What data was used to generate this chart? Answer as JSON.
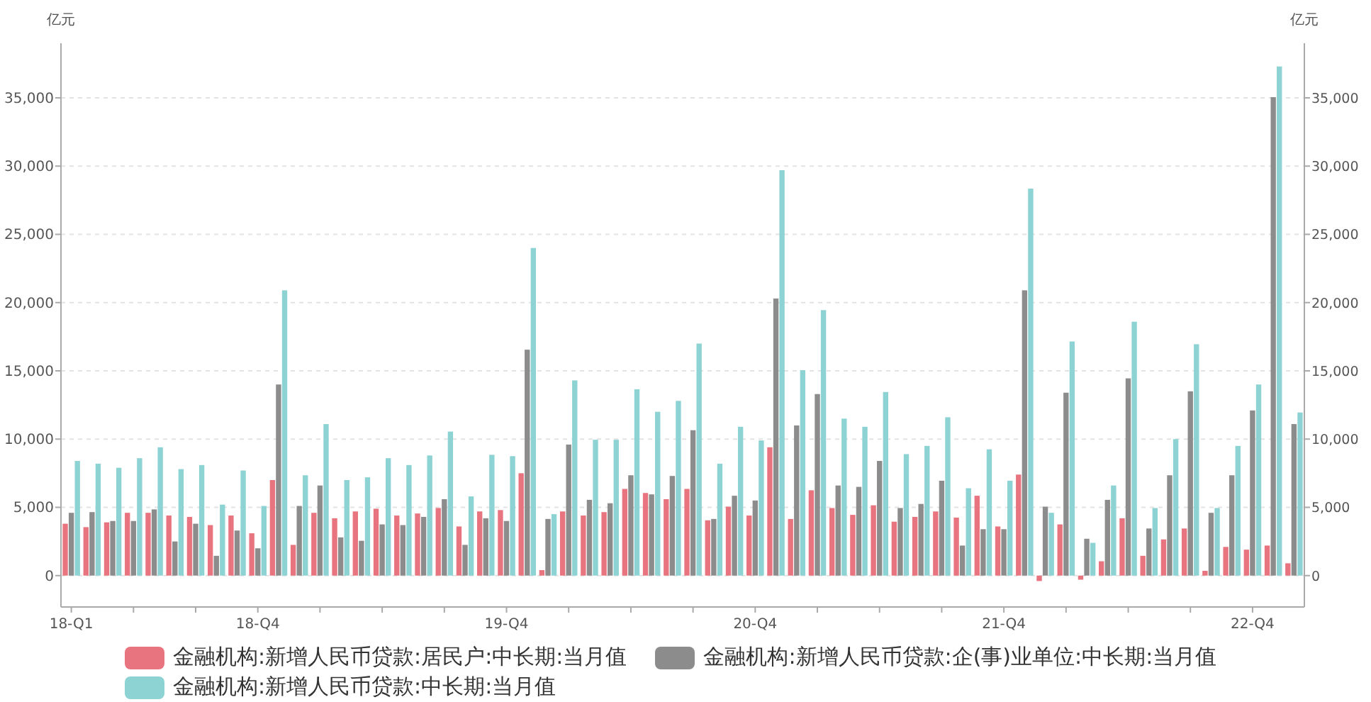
{
  "chart_data": {
    "type": "bar",
    "ylabel": "亿元",
    "y2label": "亿元",
    "categories": [
      "18-Q1",
      null,
      null,
      null,
      null,
      null,
      null,
      null,
      null,
      "18-Q4",
      null,
      null,
      null,
      null,
      null,
      null,
      null,
      null,
      null,
      null,
      null,
      "19-Q4",
      null,
      null,
      null,
      null,
      null,
      null,
      null,
      null,
      null,
      null,
      null,
      "20-Q4",
      null,
      null,
      null,
      null,
      null,
      null,
      null,
      null,
      null,
      null,
      null,
      "21-Q4",
      null,
      null,
      null,
      null,
      null,
      null,
      null,
      null,
      null,
      null,
      null,
      "22-Q4",
      null,
      null
    ],
    "series": [
      {
        "name": "金融机构:新增人民币贷款:居民户:中长期:当月值",
        "color": "#e8747f",
        "values": [
          3800,
          3550,
          3900,
          4600,
          4600,
          4400,
          4300,
          3700,
          4400,
          3100,
          7000,
          2250,
          4600,
          4200,
          4700,
          4900,
          4400,
          4550,
          4950,
          3600,
          4700,
          4800,
          7500,
          400,
          4700,
          4400,
          4650,
          6350,
          6050,
          5600,
          6350,
          4050,
          5050,
          4400,
          9400,
          4150,
          6250,
          4950,
          4450,
          5150,
          3950,
          4300,
          4700,
          4250,
          5850,
          3600,
          7400,
          -400,
          3750,
          -300,
          1050,
          4200,
          1450,
          2650,
          3450,
          350,
          2100,
          1900,
          2200,
          900
        ]
      },
      {
        "name": "金融机构:新增人民币贷款:企(事)业单位:中长期:当月值",
        "color": "#8c8c8c",
        "values": [
          4600,
          4650,
          4000,
          4000,
          4850,
          2500,
          3800,
          1450,
          3300,
          2000,
          14000,
          5100,
          6600,
          2800,
          2550,
          3750,
          3700,
          4300,
          5600,
          2250,
          4200,
          4000,
          16550,
          4150,
          9600,
          5550,
          5300,
          7350,
          5950,
          7300,
          10650,
          4150,
          5850,
          5500,
          20300,
          11000,
          13300,
          6600,
          6500,
          8400,
          4950,
          5250,
          6950,
          2200,
          3400,
          3400,
          20900,
          5050,
          13400,
          2700,
          5550,
          14450,
          3450,
          7350,
          13500,
          4600,
          7350,
          12100,
          35050,
          11100
        ]
      },
      {
        "name": "金融机构:新增人民币贷款:中长期:当月值",
        "color": "#8dd3d3",
        "values": [
          8400,
          8200,
          7900,
          8600,
          9400,
          7800,
          8100,
          5200,
          7700,
          5100,
          20900,
          7350,
          11100,
          7000,
          7200,
          8600,
          8100,
          8800,
          10550,
          5800,
          8850,
          8750,
          24000,
          4500,
          14300,
          9950,
          9950,
          13650,
          12000,
          12800,
          17000,
          8200,
          10900,
          9900,
          29700,
          15050,
          19450,
          11500,
          10900,
          13450,
          8900,
          9500,
          11600,
          6400,
          9250,
          6950,
          28350,
          4600,
          17150,
          2400,
          6600,
          18600,
          4950,
          10000,
          16950,
          4950,
          9500,
          14000,
          37300,
          11950
        ]
      }
    ],
    "ylim": [
      -2300,
      39000
    ],
    "yticks": [
      {
        "value": 0,
        "label": "0"
      },
      {
        "value": 5000,
        "label": "5,000"
      },
      {
        "value": 10000,
        "label": "10,000"
      },
      {
        "value": 15000,
        "label": "15,000"
      },
      {
        "value": 20000,
        "label": "20,000"
      },
      {
        "value": 25000,
        "label": "25,000"
      },
      {
        "value": 30000,
        "label": "30,000"
      },
      {
        "value": 35000,
        "label": "35,000"
      }
    ],
    "y2lim": [
      -2300,
      39000
    ],
    "y2ticks": [
      {
        "value": 0,
        "label": "0"
      },
      {
        "value": 5000,
        "label": "5,000"
      },
      {
        "value": 10000,
        "label": "10,000"
      },
      {
        "value": 15000,
        "label": "15,000"
      },
      {
        "value": 20000,
        "label": "20,000"
      },
      {
        "value": 25000,
        "label": "25,000"
      },
      {
        "value": 30000,
        "label": "30,000"
      },
      {
        "value": 35000,
        "label": "35,000"
      }
    ],
    "grid": "y",
    "legend": "bottom"
  }
}
